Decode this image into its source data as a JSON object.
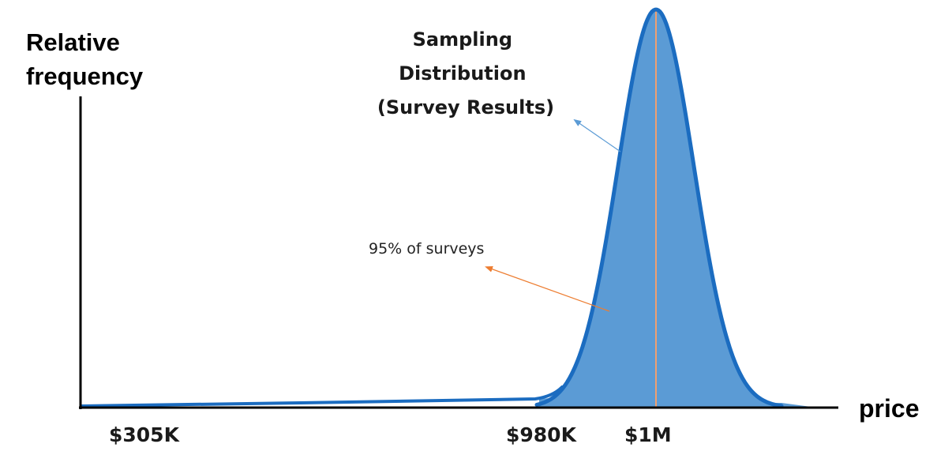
{
  "y_axis_label": [
    "Relative",
    "frequency"
  ],
  "x_axis_label": "price",
  "tick_labels": {
    "low": "$305K",
    "lower_bound": "$980K",
    "mean": "$1M"
  },
  "title_lines": [
    "Sampling",
    "Distribution",
    "(Survey Results)"
  ],
  "annotation": "95% of surveys",
  "colors": {
    "fill": "#5b9bd5",
    "outline": "#1b6cc0",
    "mean_line": "#f0a070",
    "title_arrow": "#5b9bd5",
    "annotation_arrow": "#ed7d31",
    "axis": "#000000"
  }
}
